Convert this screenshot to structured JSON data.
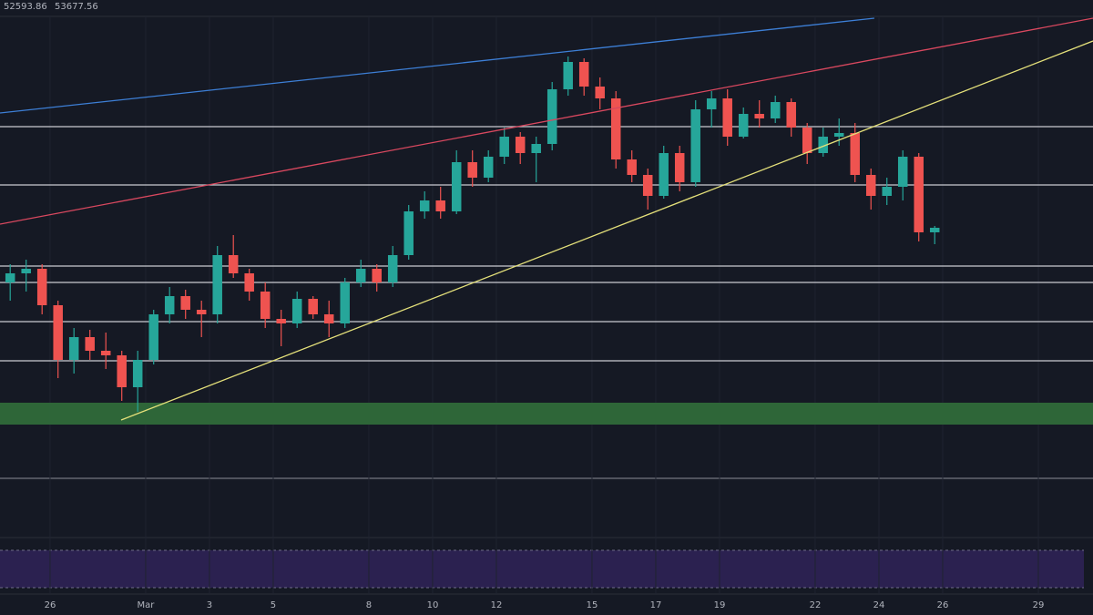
{
  "chart_data": {
    "type": "candlestick",
    "header": [
      "52593.86",
      "53677.56"
    ],
    "x": [
      0,
      1,
      2,
      3,
      4,
      5,
      6,
      7,
      8,
      9,
      10,
      11,
      12,
      13,
      14,
      15,
      16,
      17,
      18,
      19,
      20,
      21,
      22,
      23,
      24,
      25,
      26,
      27,
      28,
      29,
      30,
      31,
      32,
      33,
      34,
      35,
      36,
      37,
      38,
      39,
      40,
      41,
      42,
      43,
      44,
      45,
      46,
      47,
      48,
      49,
      50,
      51,
      52,
      53,
      54,
      55,
      56,
      57,
      58
    ],
    "open": [
      49500,
      50000,
      50250,
      48250,
      45250,
      46500,
      45750,
      45500,
      43750,
      45250,
      47750,
      48750,
      48000,
      47750,
      51000,
      50000,
      49000,
      47500,
      47250,
      48600,
      47750,
      47250,
      49500,
      50250,
      49500,
      51000,
      53400,
      54000,
      53400,
      56100,
      55250,
      56400,
      57500,
      56600,
      57100,
      60100,
      61600,
      60250,
      59600,
      56250,
      55400,
      54250,
      56600,
      55000,
      59000,
      59600,
      57500,
      58750,
      58500,
      59400,
      58000,
      56600,
      57500,
      57700,
      55400,
      54250,
      54750,
      56400,
      52250
    ],
    "high": [
      50500,
      50750,
      50500,
      48500,
      47000,
      46900,
      46750,
      45750,
      45750,
      48000,
      49250,
      49100,
      48500,
      51500,
      52100,
      50250,
      49500,
      48000,
      49000,
      48750,
      48500,
      49750,
      50750,
      50500,
      51500,
      53750,
      54500,
      54750,
      56750,
      56750,
      56750,
      58000,
      57750,
      57500,
      60500,
      61900,
      61800,
      60750,
      60000,
      56750,
      55750,
      57000,
      57000,
      59500,
      60000,
      60100,
      59100,
      59500,
      59750,
      59600,
      58250,
      58000,
      58500,
      58250,
      55750,
      55250,
      56750,
      56600,
      52600
    ],
    "low": [
      48500,
      49000,
      47750,
      44250,
      44500,
      45250,
      44750,
      43000,
      42400,
      45000,
      47250,
      47500,
      46500,
      47250,
      49750,
      48500,
      47000,
      46000,
      47000,
      47500,
      46500,
      47000,
      49250,
      49000,
      49250,
      50750,
      53000,
      53000,
      53250,
      54750,
      55000,
      56000,
      56000,
      55000,
      56750,
      59750,
      59750,
      59000,
      55750,
      55000,
      53500,
      54100,
      54500,
      54750,
      58000,
      57000,
      57400,
      58000,
      58250,
      57500,
      56000,
      56400,
      57000,
      55000,
      53500,
      53750,
      54000,
      51750,
      51600
    ],
    "close": [
      50000,
      50250,
      48250,
      45250,
      46500,
      45750,
      45500,
      43750,
      45250,
      47750,
      48750,
      48000,
      47750,
      51000,
      50000,
      49000,
      47500,
      47250,
      48600,
      47750,
      47250,
      49500,
      50250,
      49500,
      51000,
      53400,
      54000,
      53400,
      56100,
      55250,
      56400,
      57500,
      56600,
      57100,
      60100,
      61600,
      60250,
      59600,
      56250,
      55400,
      54250,
      56600,
      55000,
      59000,
      59600,
      57500,
      58750,
      58500,
      59400,
      58000,
      56600,
      57500,
      57700,
      55400,
      54250,
      54750,
      56400,
      52250,
      52500
    ],
    "up_color": "#26a69a",
    "down_color": "#ef5350",
    "xlim": [
      -0.64,
      67.93
    ],
    "xticks": [
      {
        "value": 2.5,
        "label": "26"
      },
      {
        "value": 8.5,
        "label": "Mar"
      },
      {
        "value": 12.5,
        "label": "3"
      },
      {
        "value": 16.5,
        "label": "5"
      },
      {
        "value": 22.5,
        "label": "8"
      },
      {
        "value": 26.5,
        "label": "10"
      },
      {
        "value": 30.5,
        "label": "12"
      },
      {
        "value": 36.5,
        "label": "15"
      },
      {
        "value": 40.5,
        "label": "17"
      },
      {
        "value": 44.5,
        "label": "19"
      },
      {
        "value": 50.5,
        "label": "22"
      },
      {
        "value": 54.5,
        "label": "24"
      },
      {
        "value": 58.5,
        "label": "26"
      },
      {
        "value": 64.5,
        "label": "29"
      }
    ],
    "ylim": [
      39000,
      64000
    ],
    "grid": true,
    "levels": [
      58050,
      54850,
      50400,
      49500,
      47350,
      45200
    ],
    "level_color": "#c9cbd1",
    "zone": {
      "from": 41700,
      "to": 42900,
      "color": "#2f6a3a"
    },
    "trendlines": [
      {
        "color": "#3d7fd6",
        "x": [
          -0.64,
          54.21
        ],
        "y": [
          58800,
          64000
        ]
      },
      {
        "color": "#d9485f",
        "x": [
          -0.64,
          67.93
        ],
        "y": [
          52700,
          64000
        ]
      },
      {
        "color": "#e4e07a",
        "x": [
          6.96,
          67.93
        ],
        "y": [
          41950,
          62750
        ]
      }
    ]
  }
}
